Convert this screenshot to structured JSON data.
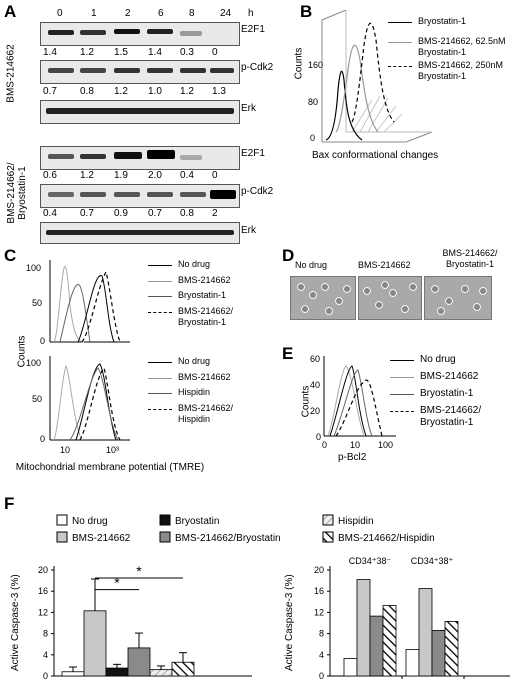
{
  "panels": {
    "a": "A",
    "b": "B",
    "c": "C",
    "d": "D",
    "e": "E",
    "f": "F"
  },
  "panelA": {
    "timepoints": [
      "0",
      "1",
      "2",
      "6",
      "8",
      "24"
    ],
    "time_unit": "h",
    "group1_label": "BMS-214662",
    "group2_label": "BMS-214662/ Bryostatin-1",
    "rows": {
      "e2f1": "E2F1",
      "pcdk2": "p-Cdk2",
      "erk": "Erk"
    },
    "g1_e2f1_values": [
      "1.4",
      "1.2",
      "1.5",
      "1.4",
      "0.3",
      "0"
    ],
    "g1_pcdk2_values": [
      "0.7",
      "0.8",
      "1.2",
      "1.0",
      "1.2",
      "1.3"
    ],
    "g2_e2f1_values": [
      "0.6",
      "1.2",
      "1.9",
      "2.0",
      "0.4",
      "0"
    ],
    "g2_pcdk2_values": [
      "0.4",
      "0.7",
      "0.9",
      "0.7",
      "0.8",
      "2"
    ]
  },
  "panelB": {
    "ylabel": "Counts",
    "xlabel": "Bax conformational changes",
    "yticks": [
      "0",
      "80",
      "160"
    ],
    "legend": [
      "Bryostatin-1",
      "BMS-214662, 62.5nM Bryostatin-1",
      "BMS-214662, 250nM Bryostatin-1"
    ]
  },
  "panelC": {
    "ylabel": "Counts",
    "xlabel": "Mitochondrial membrane potential (TMRE)",
    "xticks": [
      "10",
      "10³"
    ],
    "yticks_top": [
      "0",
      "50",
      "100"
    ],
    "yticks_bottom": [
      "0",
      "50",
      "100"
    ],
    "legend_top": [
      "No drug",
      "BMS-214662",
      "Bryostatin-1",
      "BMS-214662/ Bryostatin-1"
    ],
    "legend_bottom": [
      "No drug",
      "BMS-214662",
      "Hispidin",
      "BMS-214662/ Hispidin"
    ]
  },
  "panelD": {
    "labels": [
      "No drug",
      "BMS-214662",
      "BMS-214662/ Bryostatin-1"
    ]
  },
  "panelE": {
    "ylabel": "Counts",
    "xlabel": "p-Bcl2",
    "xticks": [
      "0",
      "10",
      "100"
    ],
    "yticks": [
      "0",
      "20",
      "40",
      "60"
    ],
    "legend": [
      "No drug",
      "BMS-214662",
      "Bryostatin-1",
      "BMS-214662/ Bryostatin-1"
    ]
  },
  "panelF": {
    "legend": [
      "No drug",
      "Bryostatin",
      "Hispidin",
      "BMS-214662",
      "BMS-214662/Bryostatin",
      "BMS-214662/Hispidin"
    ],
    "ylabel": "Active Caspase-3 (%)",
    "subgroup_labels": [
      "CD34⁺38⁻",
      "CD34⁺38⁺"
    ],
    "significance": "*"
  },
  "chart_data": [
    {
      "type": "bar",
      "ylabel": "Active Caspase-3 (%)",
      "ylim": [
        0,
        20
      ],
      "yticks": [
        0,
        4,
        8,
        12,
        16,
        20
      ],
      "categories": [
        "No drug",
        "BMS-214662",
        "Bryostatin",
        "BMS-214662/Bryostatin",
        "Hispidin",
        "BMS-214662/Hispidin"
      ],
      "values": [
        0.8,
        12.3,
        1.5,
        5.3,
        1.2,
        2.6
      ],
      "errors": [
        0.9,
        6.0,
        0.7,
        2.8,
        0.7,
        1.8
      ],
      "colors": [
        "#ffffff",
        "#c8c8c8",
        "#111111",
        "#8a8a8a",
        "hatch-light",
        "hatch-dark"
      ]
    },
    {
      "type": "bar",
      "ylabel": "Active Caspase-3 (%)",
      "ylim": [
        0,
        20
      ],
      "yticks": [
        0,
        4,
        8,
        12,
        16,
        20
      ],
      "groups": [
        "CD34⁺38⁻",
        "CD34⁺38⁺"
      ],
      "series": [
        {
          "name": "No drug",
          "values": [
            3.3,
            5.0
          ]
        },
        {
          "name": "BMS-214662",
          "values": [
            18.2,
            16.5
          ]
        },
        {
          "name": "BMS-214662/Bryostatin",
          "values": [
            11.3,
            8.6
          ]
        },
        {
          "name": "BMS-214662/Hispidin",
          "values": [
            13.3,
            10.3
          ]
        }
      ]
    }
  ]
}
